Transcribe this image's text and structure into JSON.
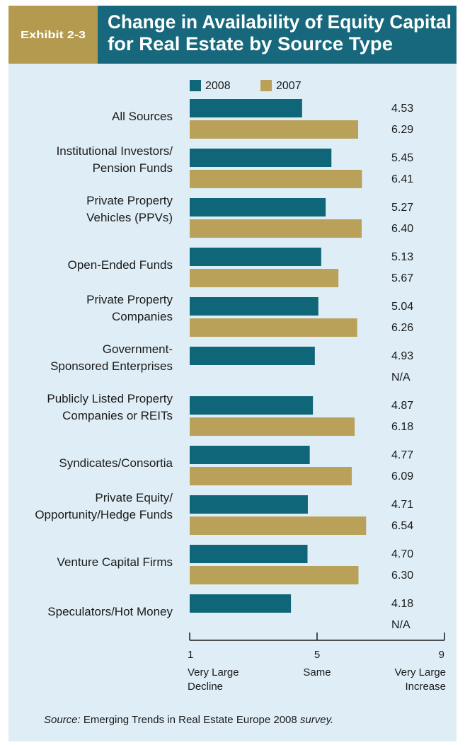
{
  "chart_data": {
    "type": "hbar",
    "exhibit": "Exhibit 2-3",
    "title": [
      "Change in Availability of Equity Capital",
      "for Real Estate by Source Type"
    ],
    "categories": [
      [
        "All Sources"
      ],
      [
        "Institutional Investors/",
        "Pension Funds"
      ],
      [
        "Private Property",
        "Vehicles (PPVs)"
      ],
      [
        "Open-Ended Funds"
      ],
      [
        "Private Property",
        "Companies"
      ],
      [
        "Government-",
        "Sponsored Enterprises"
      ],
      [
        "Publicly Listed Property",
        "Companies or REITs"
      ],
      [
        "Syndicates/Consortia"
      ],
      [
        "Private Equity/",
        "Opportunity/Hedge Funds"
      ],
      [
        "Venture Capital Firms"
      ],
      [
        "Speculators/Hot Money"
      ]
    ],
    "series": [
      {
        "name": "2008",
        "color": "#0f6679",
        "values": [
          4.53,
          5.45,
          5.27,
          5.13,
          5.04,
          4.93,
          4.87,
          4.77,
          4.71,
          4.7,
          4.18
        ],
        "value_labels": [
          "4.53",
          "5.45",
          "5.27",
          "5.13",
          "5.04",
          "4.93",
          "4.87",
          "4.77",
          "4.71",
          "4.70",
          "4.18"
        ]
      },
      {
        "name": "2007",
        "color": "#b9a15a",
        "values": [
          6.29,
          6.41,
          6.4,
          5.67,
          6.26,
          null,
          6.18,
          6.09,
          6.54,
          6.3,
          null
        ],
        "value_labels": [
          "6.29",
          "6.41",
          "6.40",
          "5.67",
          "6.26",
          "N/A",
          "6.18",
          "6.09",
          "6.54",
          "6.30",
          "N/A"
        ]
      }
    ],
    "xlim": [
      1,
      9
    ],
    "xticks": [
      1,
      5,
      9
    ],
    "xtick_descriptions": [
      [
        "Very Large",
        "Decline"
      ],
      [
        "Same"
      ],
      [
        "Very Large",
        "Increase"
      ]
    ],
    "source": {
      "label": "Source:",
      "text": "Emerging Trends in Real Estate Europe 2008",
      "suffix": "survey."
    }
  }
}
